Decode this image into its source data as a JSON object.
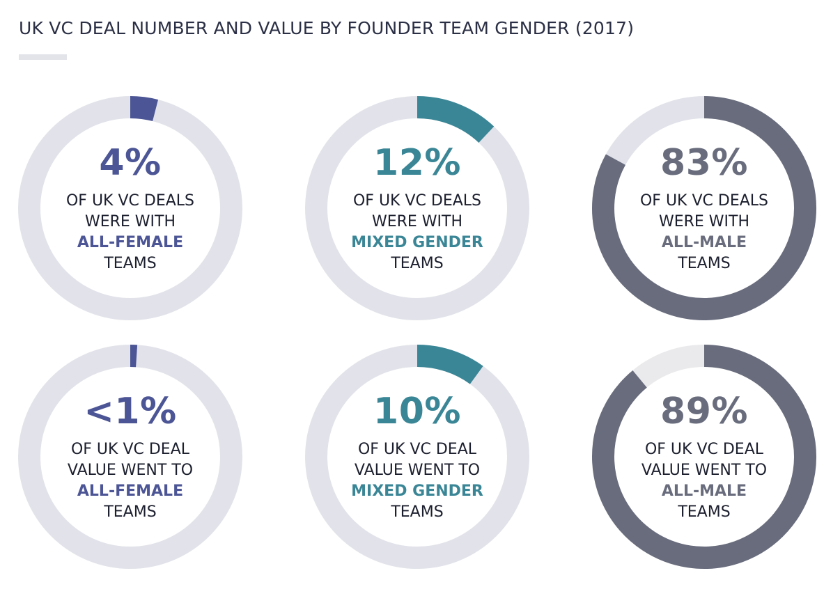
{
  "title": "UK VC DEAL NUMBER AND VALUE BY FOUNDER TEAM GENDER (2017)",
  "colors": {
    "track": "#e2e3ea",
    "track_light": "#eaeaec",
    "female": "#4c5595",
    "mixed": "#3a8696",
    "male": "#686c7c",
    "text": "#1c1f2e"
  },
  "chart_data": [
    {
      "type": "pie",
      "variant": "donut",
      "metric": "deal number",
      "value_pct": 4,
      "label": "4%",
      "lines": [
        "OF UK VC DEALS",
        "WERE WITH",
        "ALL-FEMALE",
        "TEAMS"
      ],
      "emphasis_line_index": 2,
      "color": "#4c5595",
      "track_color": "#e2e3ea"
    },
    {
      "type": "pie",
      "variant": "donut",
      "metric": "deal number",
      "value_pct": 12,
      "label": "12%",
      "lines": [
        "OF UK VC DEALS",
        "WERE WITH",
        "MIXED GENDER",
        "TEAMS"
      ],
      "emphasis_line_index": 2,
      "color": "#3a8696",
      "track_color": "#e2e3ea"
    },
    {
      "type": "pie",
      "variant": "donut",
      "metric": "deal number",
      "value_pct": 83,
      "label": "83%",
      "lines": [
        "OF UK VC DEALS",
        "WERE WITH",
        "ALL-MALE",
        "TEAMS"
      ],
      "emphasis_line_index": 2,
      "color": "#686c7c",
      "track_color": "#e2e3ea"
    },
    {
      "type": "pie",
      "variant": "donut",
      "metric": "deal value",
      "value_pct": 1,
      "label": "<1%",
      "lines": [
        "OF UK VC DEAL",
        "VALUE WENT TO",
        "ALL-FEMALE",
        "TEAMS"
      ],
      "emphasis_line_index": 2,
      "color": "#4c5595",
      "track_color": "#e2e3ea"
    },
    {
      "type": "pie",
      "variant": "donut",
      "metric": "deal value",
      "value_pct": 10,
      "label": "10%",
      "lines": [
        "OF UK VC DEAL",
        "VALUE WENT TO",
        "MIXED GENDER",
        "TEAMS"
      ],
      "emphasis_line_index": 2,
      "color": "#3a8696",
      "track_color": "#e2e3ea"
    },
    {
      "type": "pie",
      "variant": "donut",
      "metric": "deal value",
      "value_pct": 89,
      "label": "89%",
      "lines": [
        "OF UK VC DEAL",
        "VALUE WENT TO",
        "ALL-MALE",
        "TEAMS"
      ],
      "emphasis_line_index": 2,
      "color": "#686c7c",
      "track_color": "#eaeaec"
    }
  ]
}
